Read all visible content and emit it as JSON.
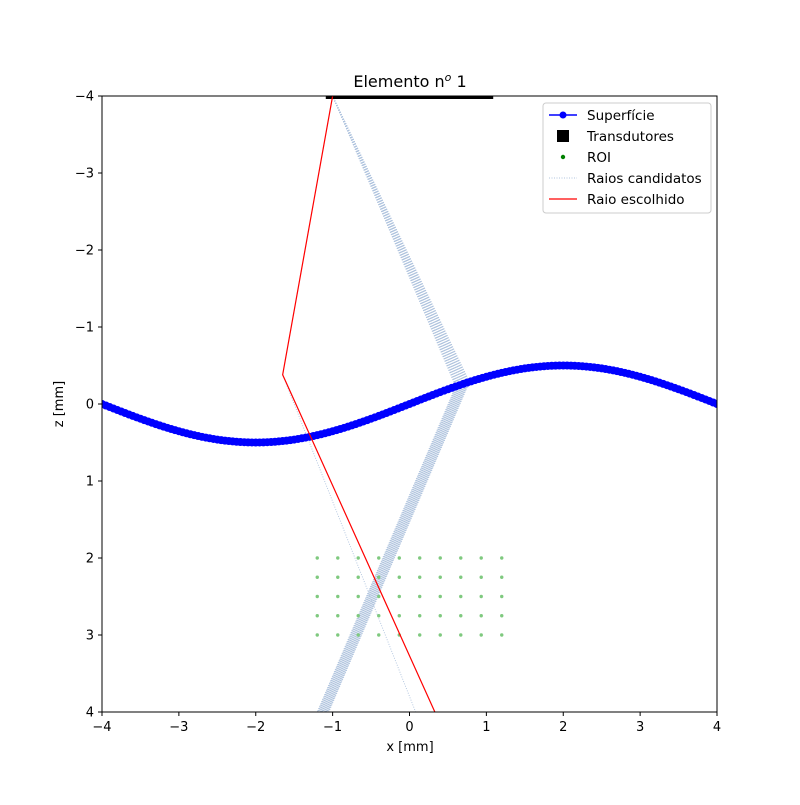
{
  "chart_data": {
    "type": "line",
    "title_main": "Elemento n",
    "title_sup": "o",
    "title_tail": " 1",
    "xlabel": "x [mm]",
    "ylabel": "z [mm]",
    "xlim": [
      -4,
      4
    ],
    "ylim": [
      4,
      -4
    ],
    "y_inverted": true,
    "xticks": [
      -4,
      -3,
      -2,
      -1,
      0,
      1,
      2,
      3,
      4
    ],
    "xtick_labels": [
      "−4",
      "−3",
      "−2",
      "−1",
      "0",
      "1",
      "2",
      "3",
      "4"
    ],
    "yticks": [
      -4,
      -3,
      -2,
      -1,
      0,
      1,
      2,
      3,
      4
    ],
    "ytick_labels": [
      "−4",
      "−3",
      "−2",
      "−1",
      "0",
      "1",
      "2",
      "3",
      "4"
    ],
    "grid": false,
    "legend_position": "top-right",
    "legend": [
      {
        "label": "Superfície",
        "kind": "line-marker",
        "color": "#0000ff"
      },
      {
        "label": "Transdutores",
        "kind": "square",
        "color": "#000000"
      },
      {
        "label": "ROI",
        "kind": "dot",
        "color": "#008000"
      },
      {
        "label": "Raios candidatos",
        "kind": "dotted-line",
        "color": "#b0c4de"
      },
      {
        "label": "Raio escolhido",
        "kind": "line",
        "color": "#ff0000"
      }
    ],
    "surface": {
      "name": "Superfície",
      "color": "#0000ff",
      "function": "z = -0.5 * sin(pi * x / 4)",
      "x_range": [
        -4,
        4
      ],
      "points": 161
    },
    "transducers": {
      "name": "Transdutores",
      "color": "#000000",
      "x_range": [
        -1.05,
        1.05
      ],
      "z": -4,
      "count": 64
    },
    "roi": {
      "name": "ROI",
      "color": "#008000",
      "x": [
        -1.2,
        -0.933,
        -0.667,
        -0.4,
        -0.133,
        0.133,
        0.4,
        0.667,
        0.933,
        1.2
      ],
      "z": [
        2.0,
        2.25,
        2.5,
        2.75,
        3.0
      ]
    },
    "candidate_rays": {
      "name": "Raios candidatos",
      "color": "#b0c4de",
      "source": [
        -1.0,
        -4.0
      ],
      "surface_x_range": [
        0.6,
        0.78
      ],
      "count": 40,
      "end_points": [
        [
          -1.2,
          4.0
        ],
        [
          -1.05,
          4.0
        ]
      ],
      "extra_ray": {
        "via": [
          -1.65,
          -0.38
        ],
        "end": [
          0.08,
          4.0
        ]
      }
    },
    "chosen_ray": {
      "name": "Raio escolhido",
      "color": "#ff0000",
      "x": [
        -1.0,
        -1.65,
        0.33
      ],
      "z": [
        -4.0,
        -0.38,
        4.0
      ]
    }
  }
}
